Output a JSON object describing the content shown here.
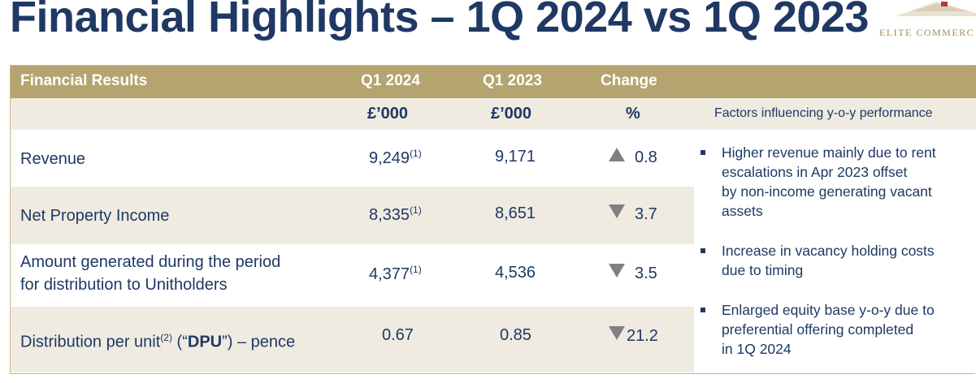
{
  "title": "Financial Highlights – 1Q 2024 vs 1Q 2023",
  "logo": {
    "text": "ELITE COMMERC"
  },
  "table": {
    "header": {
      "col1": "Financial Results",
      "col2": "Q1 2024",
      "col3": "Q1 2023",
      "col4": "Change"
    },
    "subheader": {
      "col2": "£’000",
      "col3": "£’000",
      "col4": "%",
      "factors": "Factors influencing y-o-y performance"
    },
    "rows": [
      {
        "label": "Revenue",
        "q1_2024": "9,249",
        "q1_2024_note": "(1)",
        "q1_2023": "9,171",
        "direction": "up",
        "change": "0.8"
      },
      {
        "label": "Net Property Income",
        "q1_2024": "8,335",
        "q1_2024_note": "(1)",
        "q1_2023": "8,651",
        "direction": "down",
        "change": "3.7"
      },
      {
        "label_line1": "Amount generated during the period",
        "label_line2": "for distribution to Unitholders",
        "q1_2024": "4,377",
        "q1_2024_note": "(1)",
        "q1_2023": "4,536",
        "direction": "down",
        "change": "3.5"
      },
      {
        "label_pre": "Distribution per unit",
        "label_note": "(2)",
        "label_mid": " (“",
        "label_bold": "DPU",
        "label_post": "”) – pence",
        "q1_2024": "0.67",
        "q1_2023": "0.85",
        "direction": "down",
        "change": "21.2"
      }
    ]
  },
  "factors": [
    "Higher revenue mainly due to rent\nescalations in Apr 2023 offset\nby non-income generating vacant\nassets",
    "Increase in vacancy holding costs\ndue to timing",
    "Enlarged equity base y-o-y due to\npreferential offering completed\nin 1Q 2024"
  ]
}
